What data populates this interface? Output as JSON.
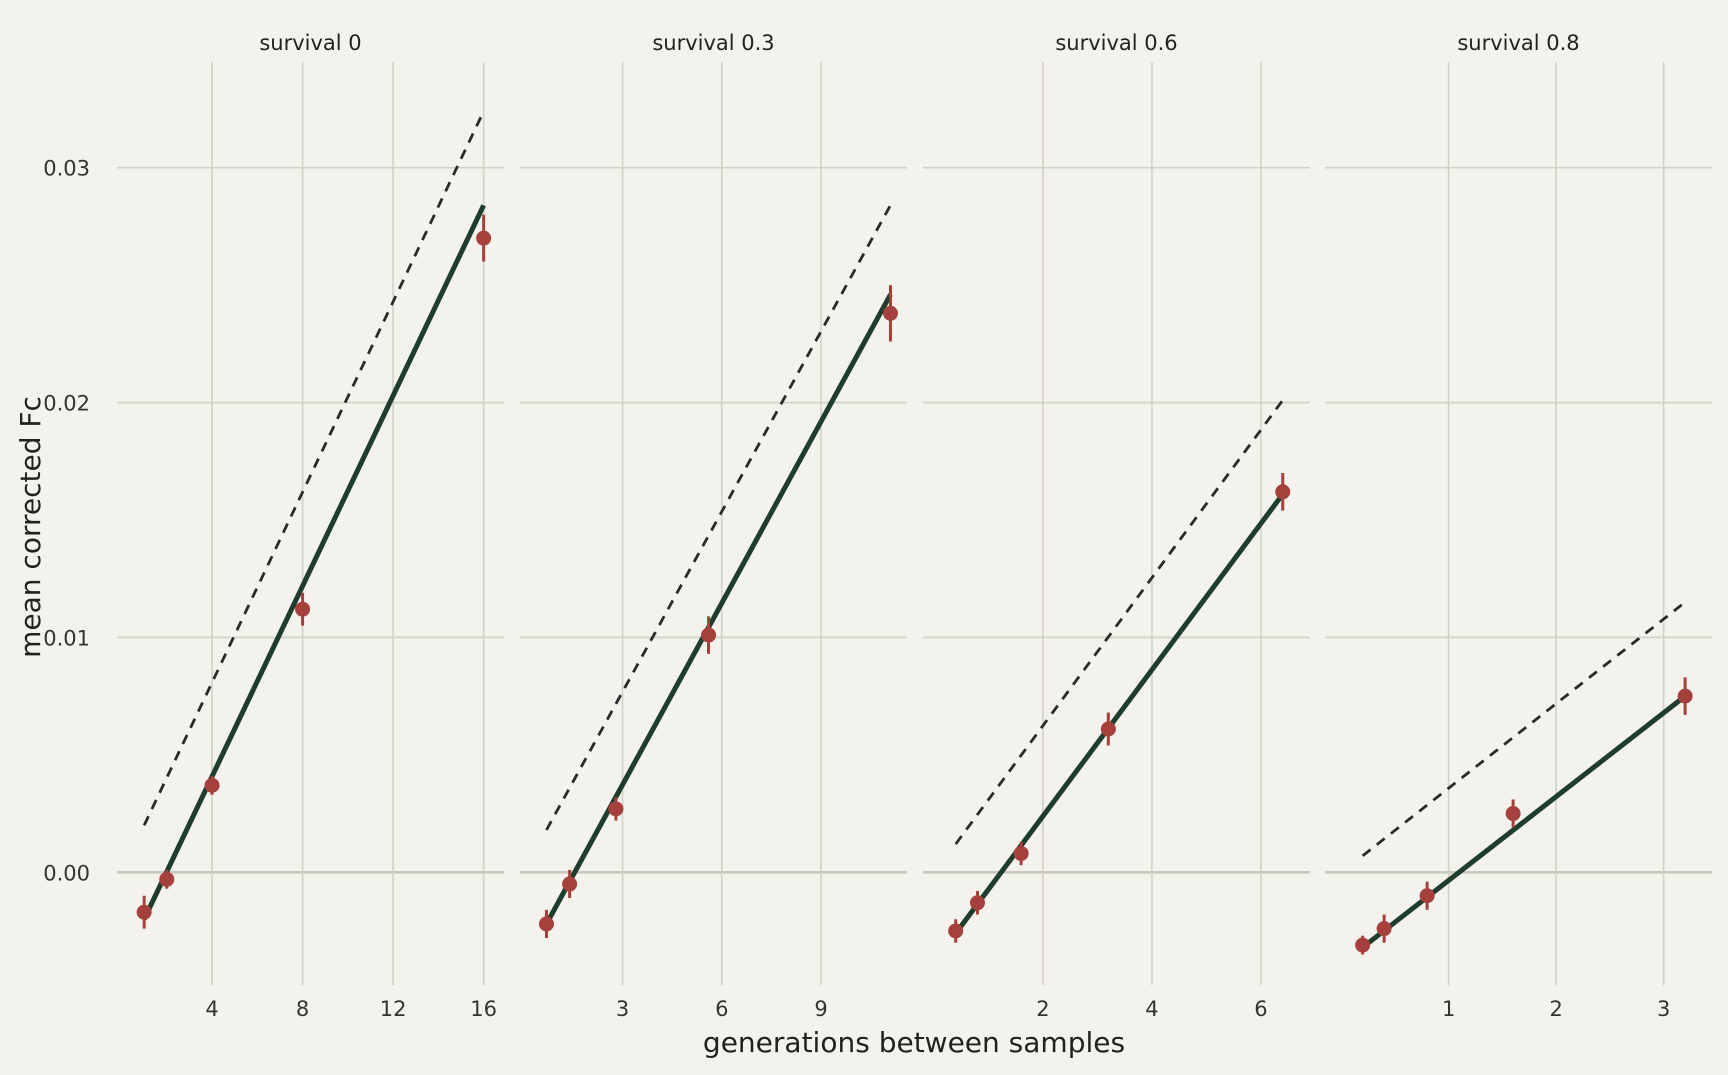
{
  "chart_data": {
    "type": "scatter",
    "xlabel": "generations between samples",
    "ylabel": "mean corrected Fc",
    "ylim": [
      -0.0048,
      0.0345
    ],
    "yticks": [
      0.0,
      0.01,
      0.02,
      0.03
    ],
    "ytick_labels": [
      "0.00",
      "0.01",
      "0.02",
      "0.03"
    ],
    "colors": {
      "background": "#f3f2ec",
      "grid": "#d2d1c5",
      "points": "#a5403d",
      "fit_line": "#1f3d2c",
      "expected_line": "#2a2a2a"
    },
    "panels": [
      {
        "title": "survival 0",
        "xlim": [
          -0.2,
          16.9
        ],
        "xticks": [
          4,
          8,
          12,
          16
        ],
        "xtick_labels": [
          "4",
          "8",
          "12",
          "16"
        ],
        "points": [
          {
            "x": 1,
            "y": -0.0017,
            "err": 0.0007
          },
          {
            "x": 2,
            "y": -0.0003,
            "err": 0.0004
          },
          {
            "x": 4,
            "y": 0.0037,
            "err": 0.0004
          },
          {
            "x": 8,
            "y": 0.0112,
            "err": 0.0007
          },
          {
            "x": 16,
            "y": 0.027,
            "err": 0.001
          }
        ],
        "fit_line": {
          "x": [
            1,
            16
          ],
          "y": [
            -0.002,
            0.0284
          ]
        },
        "expected_line": {
          "x": [
            1,
            16
          ],
          "y": [
            0.002,
            0.0324
          ]
        }
      },
      {
        "title": "survival 0.3",
        "xlim": [
          -0.1,
          11.6
        ],
        "xticks": [
          3,
          6,
          9
        ],
        "xtick_labels": [
          "3",
          "6",
          "9"
        ],
        "points": [
          {
            "x": 0.7,
            "y": -0.0022,
            "err": 0.0006
          },
          {
            "x": 1.4,
            "y": -0.0005,
            "err": 0.0006
          },
          {
            "x": 2.8,
            "y": 0.0027,
            "err": 0.0005
          },
          {
            "x": 5.6,
            "y": 0.0101,
            "err": 0.0008
          },
          {
            "x": 11.1,
            "y": 0.0238,
            "err": 0.0012
          }
        ],
        "fit_line": {
          "x": [
            0.7,
            11.1
          ],
          "y": [
            -0.0022,
            0.0246
          ]
        },
        "expected_line": {
          "x": [
            0.7,
            11.1
          ],
          "y": [
            0.0018,
            0.0284
          ]
        }
      },
      {
        "title": "survival 0.6",
        "xlim": [
          -0.2,
          6.9
        ],
        "xticks": [
          2,
          4,
          6
        ],
        "xtick_labels": [
          "2",
          "4",
          "6"
        ],
        "points": [
          {
            "x": 0.4,
            "y": -0.0025,
            "err": 0.0005
          },
          {
            "x": 0.8,
            "y": -0.0013,
            "err": 0.0005
          },
          {
            "x": 1.6,
            "y": 0.0008,
            "err": 0.0005
          },
          {
            "x": 3.2,
            "y": 0.0061,
            "err": 0.0007
          },
          {
            "x": 6.4,
            "y": 0.0162,
            "err": 0.0008
          }
        ],
        "fit_line": {
          "x": [
            0.4,
            6.4
          ],
          "y": [
            -0.0026,
            0.0161
          ]
        },
        "expected_line": {
          "x": [
            0.4,
            6.4
          ],
          "y": [
            0.0012,
            0.0201
          ]
        }
      },
      {
        "title": "survival 0.8",
        "xlim": [
          -0.15,
          3.45
        ],
        "xticks": [
          1,
          2,
          3
        ],
        "xtick_labels": [
          "1",
          "2",
          "3"
        ],
        "points": [
          {
            "x": 0.2,
            "y": -0.0031,
            "err": 0.0004
          },
          {
            "x": 0.4,
            "y": -0.0024,
            "err": 0.0006
          },
          {
            "x": 0.8,
            "y": -0.001,
            "err": 0.0006
          },
          {
            "x": 1.6,
            "y": 0.0025,
            "err": 0.0006
          },
          {
            "x": 3.2,
            "y": 0.0075,
            "err": 0.0008
          }
        ],
        "fit_line": {
          "x": [
            0.2,
            3.2
          ],
          "y": [
            -0.0032,
            0.0075
          ]
        },
        "expected_line": {
          "x": [
            0.2,
            3.2
          ],
          "y": [
            0.0007,
            0.0115
          ]
        }
      }
    ]
  }
}
